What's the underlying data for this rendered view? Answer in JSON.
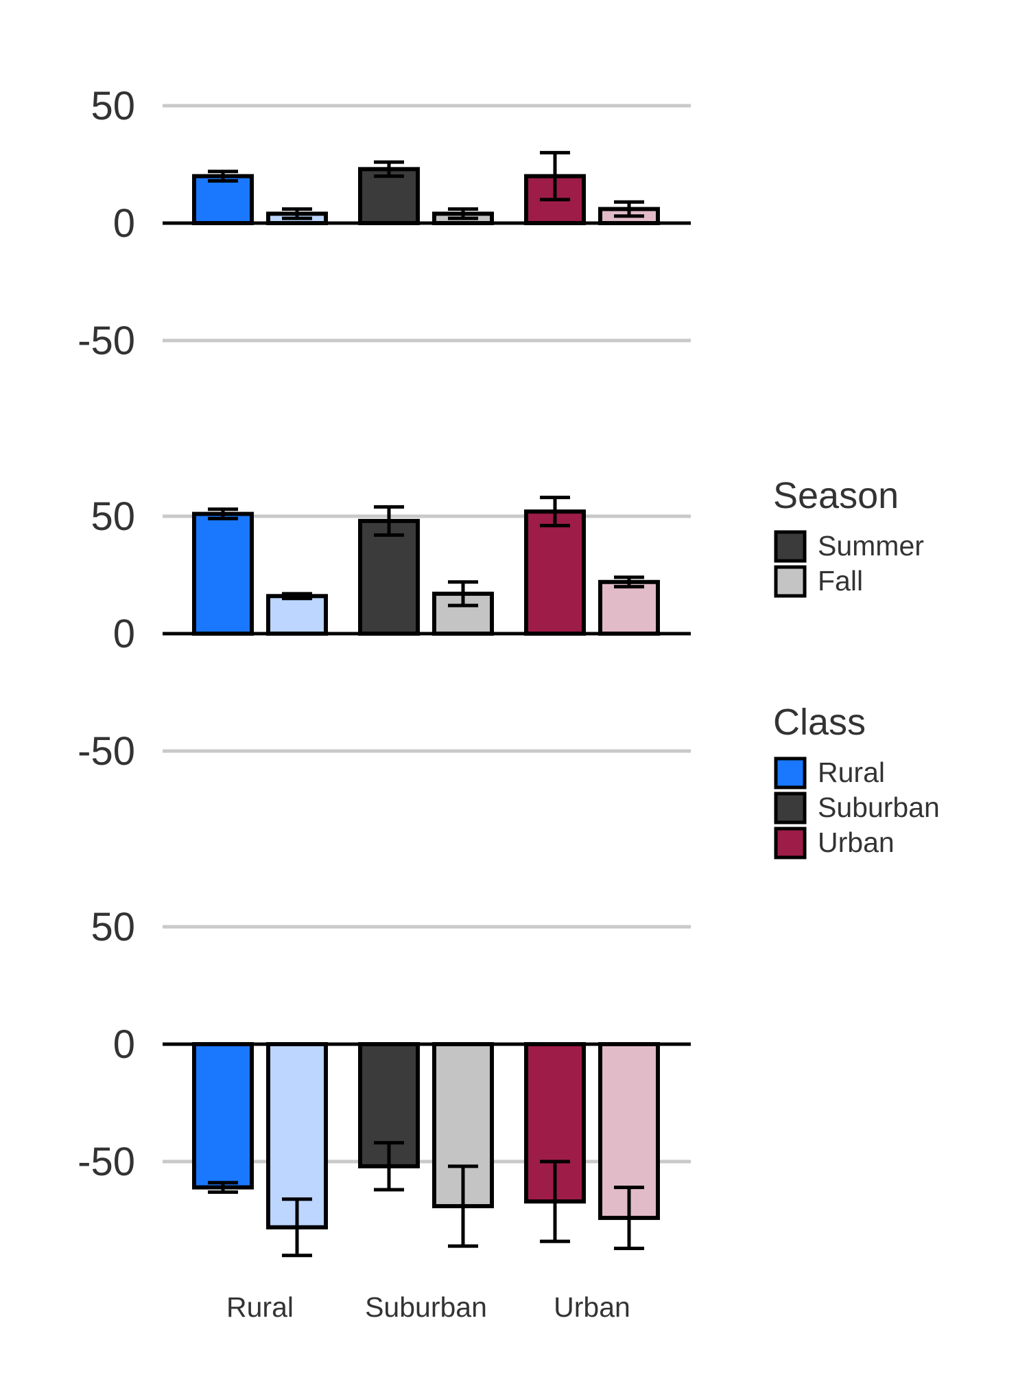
{
  "chart_data": {
    "type": "bar",
    "categories": [
      "Rural",
      "Suburban",
      "Urban"
    ],
    "ylim": [
      -100,
      100
    ],
    "yticks": [
      50,
      0,
      -50
    ],
    "ytick_labels": [
      "50",
      "0",
      "-50"
    ],
    "grid": true,
    "legend_position": "right",
    "colors": {
      "Rural": {
        "Summer": "#1a78ff",
        "Fall": "#bcd6ff"
      },
      "Suburban": {
        "Summer": "#3b3b3b",
        "Fall": "#c4c4c4"
      },
      "Urban": {
        "Summer": "#9e1c48",
        "Fall": "#e2bbc9"
      }
    },
    "legends": [
      {
        "title": "Season",
        "items": [
          {
            "label": "Summer",
            "color": "#3b3b3b"
          },
          {
            "label": "Fall",
            "color": "#c4c4c4"
          }
        ]
      },
      {
        "title": "Class",
        "items": [
          {
            "label": "Rural",
            "color": "#1a78ff"
          },
          {
            "label": "Suburban",
            "color": "#3b3b3b"
          },
          {
            "label": "Urban",
            "color": "#9e1c48"
          }
        ]
      }
    ],
    "panels": [
      {
        "series": [
          {
            "name": "Summer",
            "values": [
              20,
              23,
              20
            ],
            "errors": [
              2,
              3,
              10
            ]
          },
          {
            "name": "Fall",
            "values": [
              4,
              4,
              6
            ],
            "errors": [
              2,
              2,
              3
            ]
          }
        ]
      },
      {
        "series": [
          {
            "name": "Summer",
            "values": [
              51,
              48,
              52
            ],
            "errors": [
              2,
              6,
              6
            ]
          },
          {
            "name": "Fall",
            "values": [
              16,
              17,
              22
            ],
            "errors": [
              1,
              5,
              2
            ]
          }
        ]
      },
      {
        "series": [
          {
            "name": "Summer",
            "values": [
              -61,
              -52,
              -67
            ],
            "errors": [
              2,
              10,
              17
            ]
          },
          {
            "name": "Fall",
            "values": [
              -78,
              -69,
              -74
            ],
            "errors": [
              12,
              17,
              13
            ]
          }
        ]
      }
    ]
  }
}
